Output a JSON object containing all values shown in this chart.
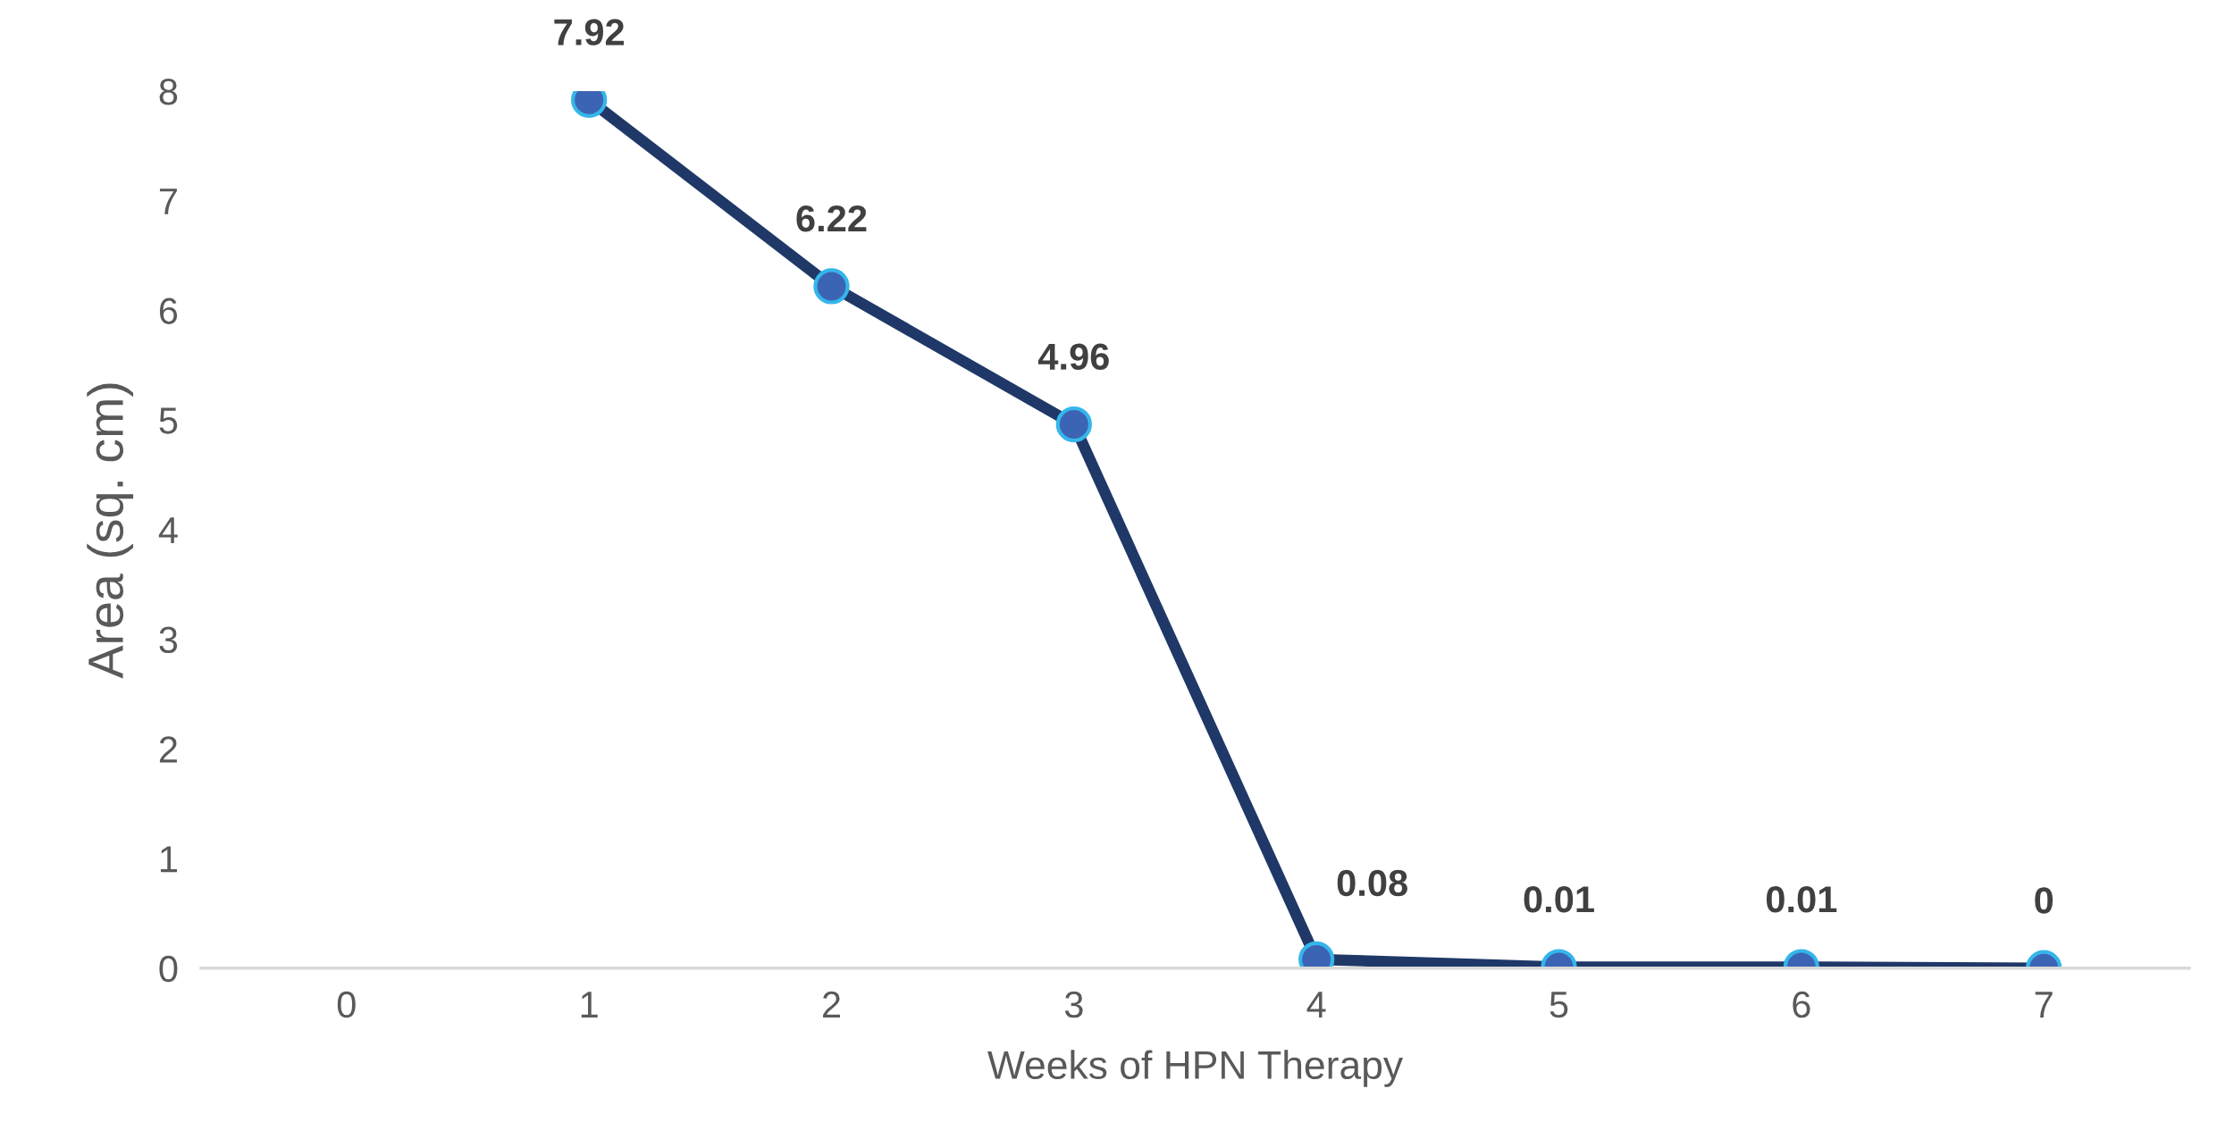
{
  "chart_data": {
    "type": "line",
    "xlabel": "Weeks of HPN Therapy",
    "ylabel": "Area (sq. cm)",
    "categories": [
      "0",
      "1",
      "2",
      "3",
      "4",
      "5",
      "6",
      "7"
    ],
    "series": [
      {
        "color": "#1f3868",
        "values": [
          null,
          7.92,
          6.22,
          4.96,
          0.08,
          0.01,
          0.01,
          0
        ]
      }
    ],
    "ylim": [
      0,
      8
    ],
    "yticks": [
      0,
      1,
      2,
      3,
      4,
      5,
      6,
      7,
      8
    ],
    "data_labels": true,
    "grid": false,
    "marker": "circle",
    "line_style": "solid"
  }
}
